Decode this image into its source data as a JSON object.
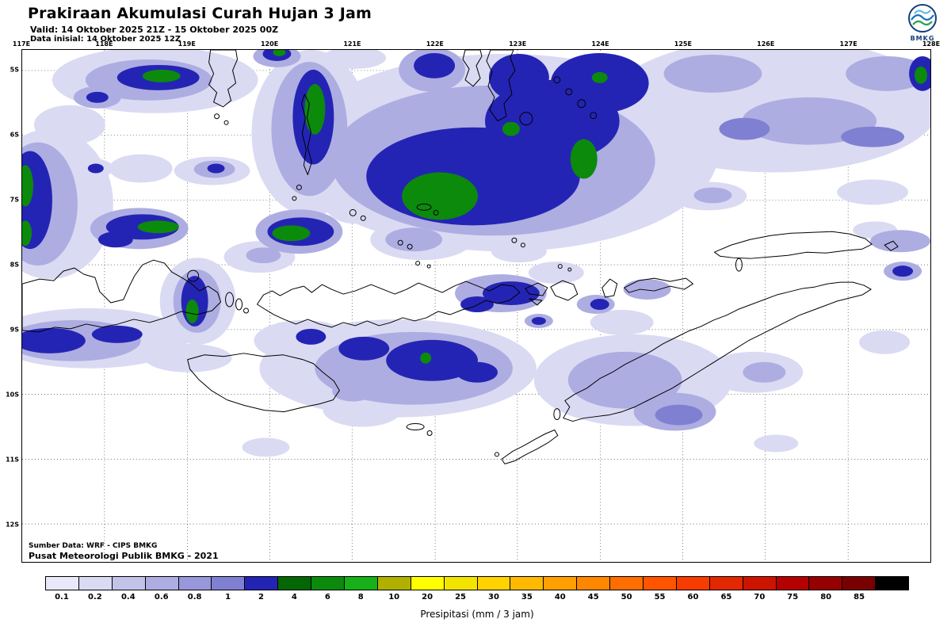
{
  "header": {
    "title": "Prakiraan Akumulasi Curah Hujan 3 Jam",
    "valid": "Valid: 14 Oktober 2025 21Z - 15 Oktober 2025 00Z",
    "data_inisial": "Data inisial: 14 Oktober 2025 12Z",
    "logo_text": "BMKG"
  },
  "map": {
    "lon_labels": [
      "117E",
      "118E",
      "119E",
      "120E",
      "121E",
      "122E",
      "123E",
      "124E",
      "125E",
      "126E",
      "127E",
      "128E"
    ],
    "lat_labels": [
      "5S",
      "6S",
      "7S",
      "8S",
      "9S",
      "10S",
      "11S",
      "12S"
    ],
    "source_line1": "Sumber Data: WRF - CIPS BMKG",
    "source_line2": "Pusat Meteorologi Publik BMKG - 2021"
  },
  "legend": {
    "caption": "Presipitasi (mm / 3 jam)",
    "tick_labels": [
      "0.1",
      "0.2",
      "0.4",
      "0.6",
      "0.8",
      "1",
      "2",
      "4",
      "6",
      "8",
      "10",
      "20",
      "25",
      "30",
      "35",
      "40",
      "45",
      "50",
      "55",
      "60",
      "65",
      "70",
      "75",
      "80",
      "85"
    ],
    "colors": [
      "#e9e9f9",
      "#dadaf3",
      "#c3c3ea",
      "#adade2",
      "#9797da",
      "#8080d2",
      "#2424b4",
      "#056605",
      "#0c8a0c",
      "#18b018",
      "#b0b000",
      "#ffff00",
      "#f2e400",
      "#ffd200",
      "#ffb900",
      "#ffa000",
      "#ff8700",
      "#ff6e00",
      "#ff5500",
      "#f63c00",
      "#e12800",
      "#cd1400",
      "#b40000",
      "#960000",
      "#780000",
      "#000000"
    ]
  }
}
